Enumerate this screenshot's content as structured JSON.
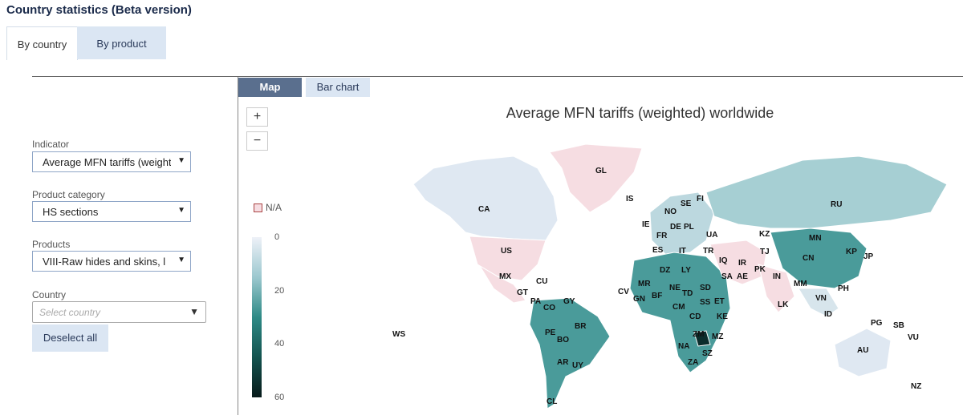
{
  "page_title": "Country statistics (Beta version)",
  "top_tabs": {
    "by_country": "By country",
    "by_product": "By product"
  },
  "sidebar": {
    "indicator_label": "Indicator",
    "indicator_value": "Average MFN tariffs (weighted)",
    "product_category_label": "Product category",
    "product_category_value": "HS sections",
    "products_label": "Products",
    "products_value": "VIII-Raw hides and skins, l",
    "country_label": "Country",
    "country_placeholder": "Select country",
    "deselect_label": "Deselect all"
  },
  "view_tabs": {
    "map": "Map",
    "bar": "Bar chart"
  },
  "zoom": {
    "in": "+",
    "out": "−"
  },
  "chart": {
    "title": "Average MFN tariffs (weighted) worldwide",
    "na_label": "N/A",
    "legend_ticks": [
      "0",
      "20",
      "40",
      "60"
    ]
  },
  "colors": {
    "na": "#f6dde2",
    "low": "#e6ebf5",
    "mid": "#4a9b9a",
    "high": "#0b2d2c",
    "accent": "#5a6f8e"
  },
  "countries": [
    "GL",
    "IS",
    "CA",
    "FI",
    "SE",
    "NO",
    "RU",
    "IE",
    "DE",
    "PL",
    "FR",
    "UA",
    "KZ",
    "MN",
    "US",
    "ES",
    "IT",
    "TR",
    "TJ",
    "KP",
    "JP",
    "CN",
    "DZ",
    "LY",
    "IQ",
    "IR",
    "PK",
    "SA",
    "AE",
    "MX",
    "CU",
    "IN",
    "MR",
    "NE",
    "TD",
    "SD",
    "CV",
    "GT",
    "BF",
    "MM",
    "PH",
    "GN",
    "SS",
    "ET",
    "VN",
    "LK",
    "CM",
    "PA",
    "GY",
    "CO",
    "KE",
    "CD",
    "ID",
    "PG",
    "SB",
    "WS",
    "BR",
    "ZM",
    "MZ",
    "PE",
    "NA",
    "SZ",
    "BO",
    "AU",
    "VU",
    "AR",
    "UY",
    "ZA",
    "NZ",
    "CL"
  ]
}
